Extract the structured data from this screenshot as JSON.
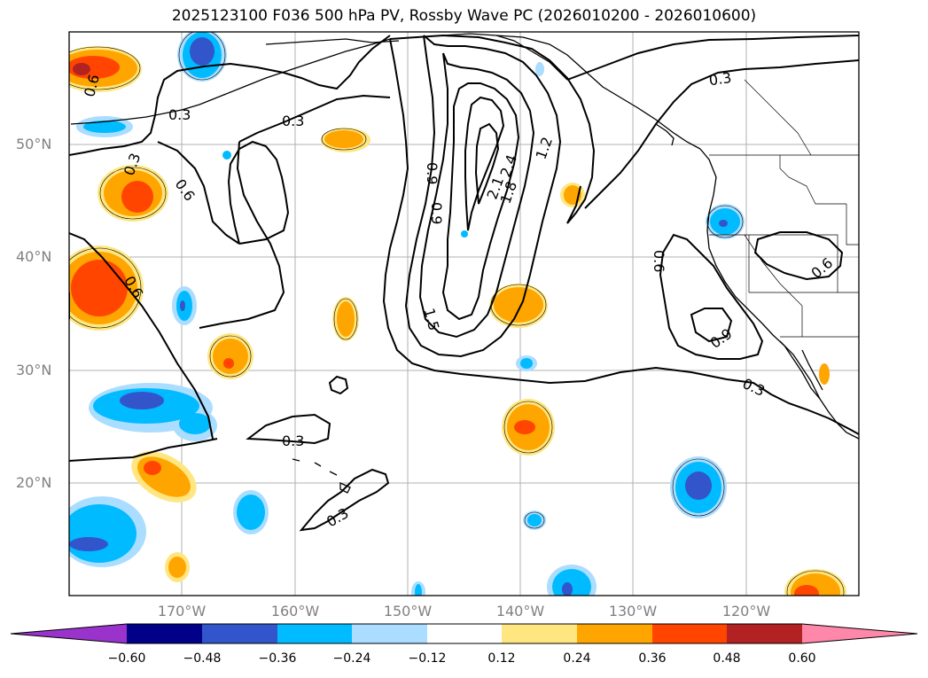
{
  "title": "2025123100 F036 500 hPa PV, Rossby Wave PC (2026010200 - 2026010600)",
  "latitude_labels": [
    "50°N",
    "40°N",
    "30°N",
    "20°N"
  ],
  "longitude_labels": [
    "170°W",
    "160°W",
    "150°W",
    "140°W",
    "130°W",
    "120°W"
  ],
  "contour_labels": {
    "l1": "0.3",
    "l2": "0.3",
    "l3": "0.3",
    "l4": "0.6",
    "l5": "0.6",
    "l6": "0.6",
    "l7": "0.3",
    "l8": "0.9",
    "l9": "0.9",
    "l10": "1.2",
    "l11": "1.5",
    "l12": "1.8",
    "l13": "2.1",
    "l14": "2.4",
    "l15": "0.6",
    "l16": "0.6",
    "l17": "0.9",
    "l18": "0.3",
    "l19": "0.3",
    "l20": "0.3"
  },
  "colorbar": {
    "ticks": [
      "−0.60",
      "−0.48",
      "−0.36",
      "−0.24",
      "−0.12",
      "0.12",
      "0.24",
      "0.36",
      "0.48",
      "0.60"
    ],
    "colors": [
      "#9933cc",
      "#000088",
      "#3355cc",
      "#00bbff",
      "#aaddff",
      "#ffffff",
      "#ffe680",
      "#ffa500",
      "#ff4500",
      "#b22222",
      "#ff88aa",
      "#ff88aa"
    ]
  }
}
